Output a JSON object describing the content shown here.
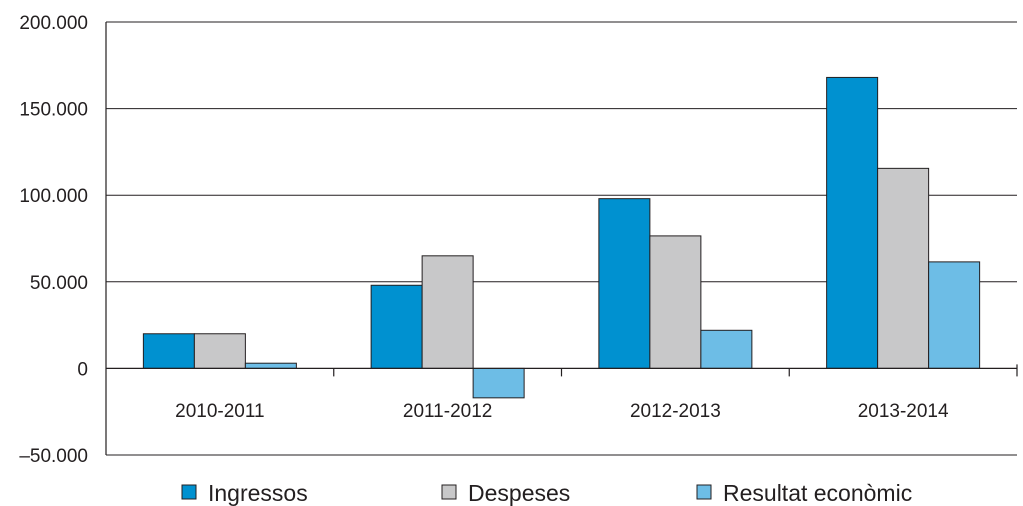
{
  "chart_data": {
    "type": "bar",
    "categories": [
      "2010-2011",
      "2011-2012",
      "2012-2013",
      "2013-2014"
    ],
    "series": [
      {
        "name": "Ingressos",
        "values": [
          20000,
          48000,
          98000,
          168000
        ],
        "color": "#0091d0"
      },
      {
        "name": "Despeses",
        "values": [
          20000,
          65000,
          76500,
          115500
        ],
        "color": "#c8c8c9"
      },
      {
        "name": "Resultat econòmic",
        "values": [
          3000,
          -17000,
          22000,
          61500
        ],
        "color": "#6dbde6"
      }
    ],
    "ylim": [
      -50000,
      200000
    ],
    "yticks": [
      -50000,
      0,
      50000,
      100000,
      150000,
      200000
    ],
    "ytick_labels": [
      "–50.000",
      "0",
      "50.000",
      "100.000",
      "150.000",
      "200.000"
    ],
    "grid": "horizontal",
    "legend_position": "bottom",
    "title": "",
    "xlabel": "",
    "ylabel": ""
  }
}
